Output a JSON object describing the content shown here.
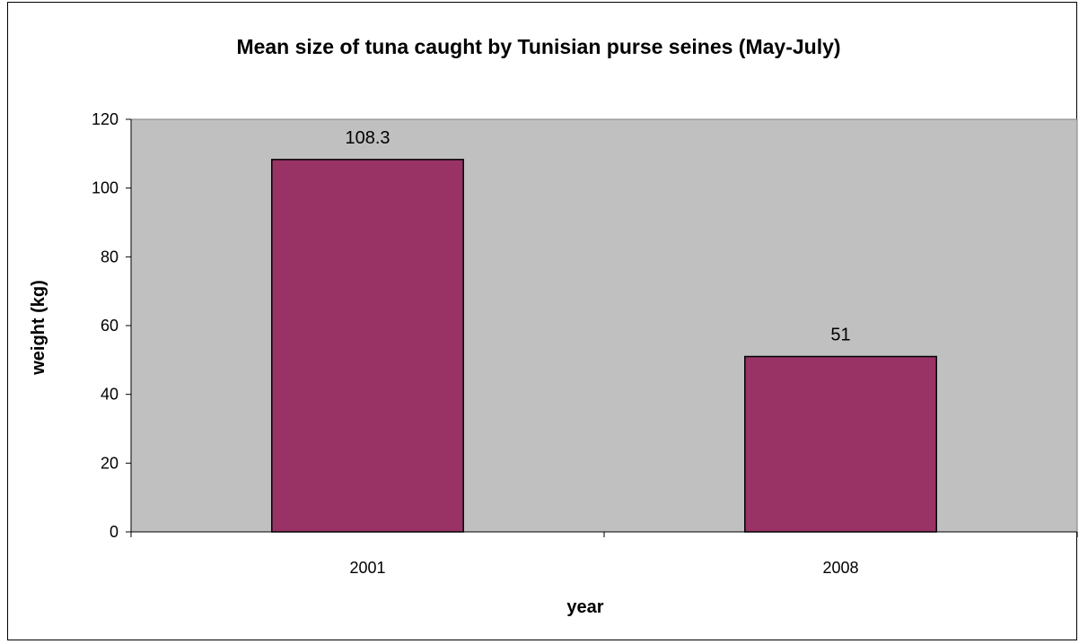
{
  "chart_data": {
    "type": "bar",
    "title": "Mean size of tuna caught by Tunisian purse seines (May-July)",
    "xlabel": "year",
    "ylabel": "weight (kg)",
    "categories": [
      "2001",
      "2008"
    ],
    "values": [
      108.3,
      51
    ],
    "data_labels": [
      "108.3",
      "51"
    ],
    "ylim": [
      0,
      120
    ],
    "yticks": [
      0,
      20,
      40,
      60,
      80,
      100,
      120
    ],
    "ytick_labels": [
      "0",
      "20",
      "40",
      "60",
      "80",
      "100",
      "120"
    ],
    "grid": false,
    "legend": "none",
    "colors": {
      "bar": "#993366",
      "plot_background": "#C0C0C0"
    }
  }
}
